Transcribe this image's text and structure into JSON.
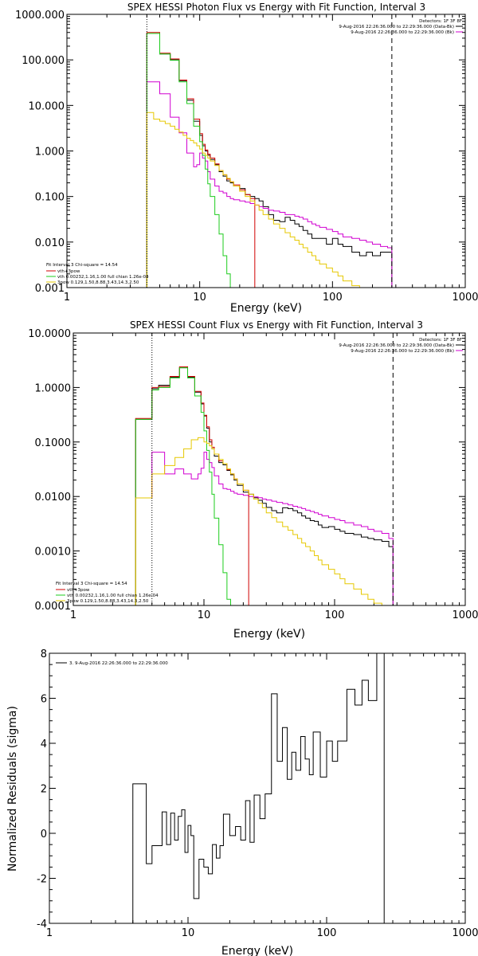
{
  "chart_data": [
    {
      "type": "line",
      "title": "SPEX HESSI Photon Flux vs Energy with Fit Function, Interval 3",
      "xlabel": "Energy (keV)",
      "ylabel": "",
      "xscale": "log",
      "yscale": "log",
      "xlim": [
        1,
        1000
      ],
      "ylim": [
        0.001,
        1000
      ],
      "x_ticks": [
        1,
        10,
        100,
        1000
      ],
      "x_tick_labels": [
        "1",
        "10",
        "100",
        "1000"
      ],
      "y_ticks": [
        0.001,
        0.01,
        0.1,
        1,
        10,
        100,
        1000
      ],
      "y_tick_labels": [
        "0.001",
        "0.010",
        "0.100",
        "1.000",
        "10.000",
        "100.000",
        "1000.000"
      ],
      "legend_top_right": {
        "line1": "Detectors: 1F 3F 8F",
        "line2": "9-Aug-2016 22:26:36.000 to 22:29:36.000 (Data-Bk)",
        "line3": "9-Aug-2016 22:26:36.000 to 22:29:36.000 (Bk)"
      },
      "legend_bottom_left": {
        "line1": "Fit Interval  3    Chi-square = 14.54",
        "line2": "vth+3pow",
        "line3": "vth 0.00232,1.16,1.00  full chian 1.26e-04",
        "line4": "3pow 0.129,1.50,8.88,3.43,14.3,2.50"
      },
      "energy_edges": [
        4,
        4.5,
        5,
        5.5,
        6,
        6.5,
        7,
        7.5,
        8,
        8.5,
        9,
        9.5,
        10,
        10.5,
        11,
        11.5,
        12,
        13,
        14,
        15,
        16,
        17,
        18,
        20,
        22,
        24,
        26,
        28,
        30,
        33,
        36,
        40,
        44,
        48,
        52,
        56,
        60,
        65,
        70,
        75,
        80,
        90,
        100,
        110,
        120,
        140,
        160,
        180,
        200,
        230,
        260,
        280
      ],
      "series": [
        {
          "name": "Data-Bk",
          "color": "#000000",
          "values": [
            380,
            380,
            135,
            135,
            100,
            100,
            35,
            35,
            13,
            13,
            4.5,
            4.5,
            2.2,
            1.3,
            1.0,
            0.8,
            0.65,
            0.5,
            0.35,
            0.28,
            0.22,
            0.2,
            0.17,
            0.15,
            0.11,
            0.1,
            0.09,
            0.08,
            0.06,
            0.04,
            0.03,
            0.028,
            0.035,
            0.03,
            0.025,
            0.022,
            0.018,
            0.015,
            0.012,
            0.012,
            0.012,
            0.009,
            0.012,
            0.009,
            0.008,
            0.006,
            0.005,
            0.006,
            0.005,
            0.006,
            0.006
          ]
        },
        {
          "name": "Bk",
          "color": "#d100d1",
          "values": [
            33,
            33,
            18,
            18,
            5.5,
            5.5,
            2.5,
            2.5,
            0.9,
            0.9,
            0.45,
            0.5,
            0.9,
            0.7,
            0.6,
            0.35,
            0.24,
            0.17,
            0.13,
            0.12,
            0.1,
            0.09,
            0.085,
            0.08,
            0.075,
            0.07,
            0.065,
            0.06,
            0.055,
            0.05,
            0.048,
            0.045,
            0.04,
            0.04,
            0.037,
            0.035,
            0.032,
            0.028,
            0.025,
            0.023,
            0.021,
            0.019,
            0.017,
            0.015,
            0.013,
            0.012,
            0.011,
            0.01,
            0.009,
            0.008,
            0.0075
          ]
        },
        {
          "name": "vth+3pow",
          "color": "#d10000",
          "values": [
            400,
            400,
            140,
            140,
            105,
            105,
            36,
            36,
            14,
            14,
            5,
            5,
            2.4,
            1.4,
            1.05,
            0.85,
            0.7,
            0.52,
            0.37,
            0.3,
            0.24,
            0.21,
            0.18,
            0.14,
            0.11,
            0.09
          ]
        },
        {
          "name": "vth",
          "color": "#1ecc1e",
          "values": [
            380,
            380,
            135,
            135,
            98,
            98,
            33,
            33,
            11,
            11,
            3.5,
            3.5,
            1.6,
            0.8,
            0.4,
            0.19,
            0.1,
            0.04,
            0.015,
            0.005,
            0.002
          ]
        },
        {
          "name": "3pow",
          "color": "#e6c800",
          "values": [
            7,
            5,
            4.5,
            4,
            3.5,
            3,
            2.6,
            2.2,
            1.9,
            1.7,
            1.5,
            1.3,
            1.1,
            0.9,
            0.8,
            0.7,
            0.6,
            0.48,
            0.37,
            0.3,
            0.25,
            0.21,
            0.17,
            0.13,
            0.1,
            0.08,
            0.065,
            0.05,
            0.04,
            0.032,
            0.025,
            0.02,
            0.016,
            0.013,
            0.011,
            0.009,
            0.0075,
            0.006,
            0.005,
            0.004,
            0.0033,
            0.0027,
            0.0022,
            0.0018,
            0.0014,
            0.0011
          ]
        }
      ],
      "vertical_lines": [
        {
          "x": 4,
          "style": "dotted"
        },
        {
          "x": 280,
          "style": "dashed"
        }
      ]
    },
    {
      "type": "line",
      "title": "SPEX HESSI Count Flux vs Energy with Fit Function, Interval 3",
      "xlabel": "Energy (keV)",
      "ylabel": "",
      "xscale": "log",
      "yscale": "log",
      "xlim": [
        1,
        1000
      ],
      "ylim": [
        0.0001,
        10
      ],
      "x_ticks": [
        1,
        10,
        100,
        1000
      ],
      "x_tick_labels": [
        "1",
        "10",
        "100",
        "1000"
      ],
      "y_ticks": [
        0.0001,
        0.001,
        0.01,
        0.1,
        1,
        10
      ],
      "y_tick_labels": [
        "0.0001",
        "0.0010",
        "0.0100",
        "0.1000",
        "1.0000",
        "10.0000"
      ],
      "legend_top_right": {
        "line1": "Detectors: 1F 3F 8F",
        "line2": "9-Aug-2016 22:26:36.000 to 22:29:36.000 (Data-Bk)",
        "line3": "9-Aug-2016 22:26:36.000 to 22:29:36.000 (Bk)"
      },
      "legend_bottom_left": {
        "line1": "Fit Interval  3    Chi-square = 14.54",
        "line2": "vth+3pow",
        "line3": "vth 0.00232,1.16,1.00  full chian 1.26e-04",
        "line4": "3pow 0.129,1.50,8.88,3.43,14.3,2.50"
      },
      "energy_edges": [
        3,
        4,
        4.5,
        5,
        5.5,
        6,
        6.5,
        7,
        7.5,
        8,
        8.5,
        9,
        9.5,
        10,
        10.5,
        11,
        11.5,
        12,
        13,
        14,
        15,
        16,
        17,
        18,
        20,
        22,
        24,
        26,
        28,
        30,
        33,
        36,
        40,
        44,
        48,
        52,
        56,
        60,
        65,
        70,
        75,
        80,
        90,
        100,
        110,
        120,
        140,
        160,
        180,
        200,
        230,
        260,
        280
      ],
      "series": [
        {
          "name": "Data-Bk",
          "color": "#000000",
          "values": [
            0.26,
            0.95,
            1.1,
            1.1,
            1.55,
            1.55,
            2.3,
            2.3,
            1.55,
            1.55,
            0.82,
            0.82,
            0.5,
            0.3,
            0.18,
            0.1,
            0.075,
            0.055,
            0.042,
            0.038,
            0.03,
            0.025,
            0.02,
            0.016,
            0.012,
            0.011,
            0.0095,
            0.0085,
            0.0075,
            0.0063,
            0.0055,
            0.005,
            0.0062,
            0.006,
            0.0055,
            0.005,
            0.0044,
            0.004,
            0.0036,
            0.0035,
            0.003,
            0.0027,
            0.0028,
            0.0025,
            0.0023,
            0.0021,
            0.002,
            0.0018,
            0.0017,
            0.0016,
            0.0015,
            0.0012
          ]
        },
        {
          "name": "Bk",
          "color": "#d100d1",
          "values": [
            0.0094,
            0.065,
            0.065,
            0.026,
            0.026,
            0.032,
            0.032,
            0.026,
            0.026,
            0.021,
            0.021,
            0.026,
            0.033,
            0.065,
            0.048,
            0.042,
            0.034,
            0.024,
            0.017,
            0.014,
            0.0135,
            0.0125,
            0.0115,
            0.011,
            0.0105,
            0.01,
            0.0098,
            0.0095,
            0.009,
            0.0086,
            0.0082,
            0.0078,
            0.0074,
            0.007,
            0.0066,
            0.0063,
            0.006,
            0.0056,
            0.0053,
            0.005,
            0.0047,
            0.0044,
            0.0041,
            0.0038,
            0.0036,
            0.0033,
            0.003,
            0.0028,
            0.0025,
            0.0023,
            0.0021,
            0.0017
          ]
        },
        {
          "name": "vth+3pow",
          "color": "#d10000",
          "values": [
            0.27,
            1.0,
            1.05,
            1.05,
            1.6,
            1.6,
            2.4,
            2.4,
            1.6,
            1.6,
            0.85,
            0.85,
            0.52,
            0.31,
            0.19,
            0.11,
            0.08,
            0.06,
            0.045,
            0.04,
            0.031,
            0.026,
            0.021,
            0.017,
            0.013
          ]
        },
        {
          "name": "vth",
          "color": "#1ecc1e",
          "values": [
            0.26,
            0.9,
            1.0,
            1.0,
            1.5,
            1.5,
            2.3,
            2.3,
            1.5,
            1.5,
            0.7,
            0.7,
            0.35,
            0.16,
            0.07,
            0.028,
            0.011,
            0.004,
            0.0013,
            0.0004,
            0.00013
          ]
        },
        {
          "name": "3pow",
          "color": "#e6c800",
          "values": [
            0.0094,
            0.026,
            0.026,
            0.037,
            0.037,
            0.052,
            0.052,
            0.075,
            0.075,
            0.11,
            0.11,
            0.12,
            0.12,
            0.1,
            0.095,
            0.085,
            0.075,
            0.06,
            0.048,
            0.04,
            0.032,
            0.026,
            0.021,
            0.017,
            0.013,
            0.011,
            0.009,
            0.0075,
            0.0062,
            0.005,
            0.0041,
            0.0034,
            0.0028,
            0.0024,
            0.002,
            0.0017,
            0.0014,
            0.0012,
            0.001,
            0.00082,
            0.00068,
            0.00056,
            0.00046,
            0.00038,
            0.00031,
            0.00025,
            0.0002,
            0.00016,
            0.00013,
            0.00011
          ]
        }
      ],
      "vertical_lines": [
        {
          "x": 4,
          "style": "dotted"
        },
        {
          "x": 280,
          "style": "dashed"
        }
      ]
    },
    {
      "type": "line",
      "title": "",
      "xlabel": "Energy (keV)",
      "ylabel": "Normalized Residuals (sigma)",
      "xscale": "log",
      "yscale": "linear",
      "xlim": [
        1,
        1000
      ],
      "ylim": [
        -4,
        8
      ],
      "x_ticks": [
        1,
        10,
        100,
        1000
      ],
      "x_tick_labels": [
        "1",
        "10",
        "100",
        "1000"
      ],
      "y_ticks": [
        -4,
        -2,
        0,
        2,
        4,
        6,
        8
      ],
      "y_tick_labels": [
        "-4",
        "-2",
        "0",
        "2",
        "4",
        "6",
        "8"
      ],
      "legend": "3.  9-Aug-2016 22:26:36.000 to 22:29:36.000",
      "energy_edges": [
        4,
        5,
        5.5,
        6.5,
        7,
        7.5,
        8,
        8.5,
        9,
        9.5,
        10,
        10.5,
        11,
        12,
        13,
        14,
        15,
        16,
        17,
        18,
        20,
        22,
        24,
        26,
        28,
        30,
        33,
        36,
        40,
        44,
        48,
        52,
        56,
        60,
        65,
        70,
        75,
        80,
        90,
        100,
        110,
        120,
        140,
        160,
        180,
        200,
        230,
        260,
        280
      ],
      "series": [
        {
          "name": "3.",
          "color": "#000000",
          "values": [
            2.2,
            -1.35,
            -0.55,
            0.95,
            -0.5,
            0.9,
            -0.3,
            0.75,
            1.05,
            -0.85,
            0.35,
            -0.1,
            -2.9,
            -1.15,
            -1.5,
            -1.8,
            -0.5,
            -1.1,
            -0.55,
            0.85,
            -0.1,
            0.3,
            -0.3,
            1.45,
            -0.4,
            1.7,
            0.65,
            1.75,
            6.2,
            3.2,
            4.7,
            2.4,
            3.6,
            2.8,
            4.3,
            3.3,
            2.6,
            4.5,
            2.5,
            4.1,
            3.2,
            4.1,
            6.4,
            5.7,
            6.8,
            5.9,
            8.0
          ]
        }
      ]
    }
  ]
}
